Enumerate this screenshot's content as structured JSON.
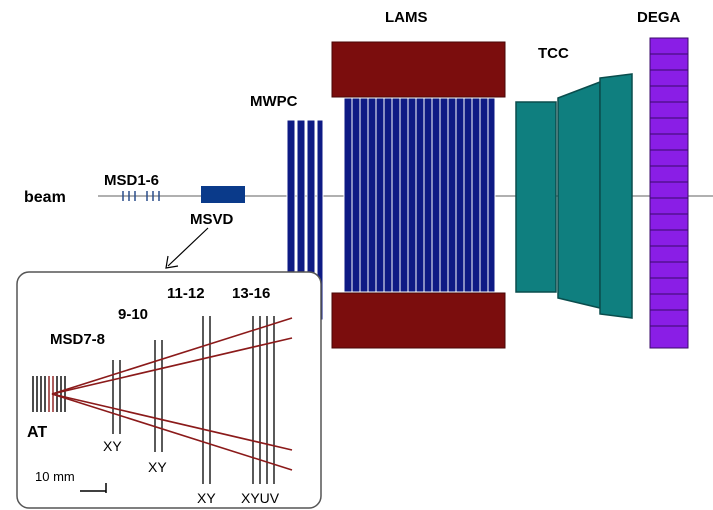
{
  "labels": {
    "beam": "beam",
    "msd_upstream": "MSD1-6",
    "msvd": "MSVD",
    "mwpc": "MWPC",
    "lams": "LAMS",
    "tcc": "TCC",
    "dega": "DEGA"
  },
  "inset": {
    "msd78": "MSD7-8",
    "p9_10": "9-10",
    "p11_12": "11-12",
    "p13_16": "13-16",
    "target": "AT",
    "xy1": "XY",
    "xy2": "XY",
    "xy3": "XY",
    "xyuv": "XYUV",
    "scale_label": "10 mm"
  },
  "colors": {
    "dark_red": "#7b0d0d",
    "navy": "#0e1a84",
    "msvd_blue": "#0a3a8a",
    "teal": "#0f7f7f",
    "purple": "#8a1ee6",
    "track_red": "#8b1a1a"
  }
}
